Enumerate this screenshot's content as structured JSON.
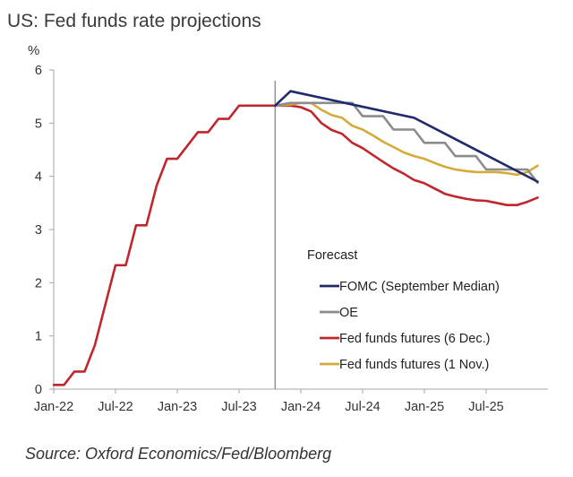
{
  "chart_data": {
    "type": "line",
    "title": "US: Fed funds rate projections",
    "ylabel": "%",
    "ylim": [
      0,
      6
    ],
    "yticks": [
      0,
      1,
      2,
      3,
      4,
      5,
      6
    ],
    "x_ticks": [
      "Jan-22",
      "Jul-22",
      "Jan-23",
      "Jul-23",
      "Jan-24",
      "Jul-24",
      "Jan-25",
      "Jul-25"
    ],
    "x_range_months": [
      0,
      48
    ],
    "forecast_start_month": 21.5,
    "annotation": "Forecast",
    "source": "Source: Oxford Economics/Fed/Bloomberg",
    "colors": {
      "fomc": "#1f2a6b",
      "oe": "#8c8c8c",
      "futures_dec": "#c0272d",
      "futures_nov": "#d4aa3a",
      "axis": "#a6a6a6",
      "forecast_line": "#7f7f7f"
    },
    "series": [
      {
        "name": "Fed funds futures (6 Dec.)",
        "key": "futures_dec",
        "points": [
          [
            0,
            0.08
          ],
          [
            1,
            0.08
          ],
          [
            2,
            0.33
          ],
          [
            3,
            0.33
          ],
          [
            4,
            0.83
          ],
          [
            5,
            1.58
          ],
          [
            6,
            2.33
          ],
          [
            7,
            2.33
          ],
          [
            8,
            3.08
          ],
          [
            9,
            3.08
          ],
          [
            10,
            3.83
          ],
          [
            11,
            4.33
          ],
          [
            12,
            4.33
          ],
          [
            13,
            4.58
          ],
          [
            14,
            4.83
          ],
          [
            15,
            4.83
          ],
          [
            16,
            5.08
          ],
          [
            17,
            5.08
          ],
          [
            18,
            5.33
          ],
          [
            19,
            5.33
          ],
          [
            20,
            5.33
          ],
          [
            21,
            5.33
          ],
          [
            22,
            5.33
          ],
          [
            23,
            5.33
          ],
          [
            24,
            5.3
          ],
          [
            25,
            5.22
          ],
          [
            26,
            5.0
          ],
          [
            27,
            4.87
          ],
          [
            28,
            4.8
          ],
          [
            29,
            4.63
          ],
          [
            30,
            4.53
          ],
          [
            31,
            4.4
          ],
          [
            32,
            4.27
          ],
          [
            33,
            4.15
          ],
          [
            34,
            4.05
          ],
          [
            35,
            3.93
          ],
          [
            36,
            3.87
          ],
          [
            37,
            3.77
          ],
          [
            38,
            3.67
          ],
          [
            39,
            3.62
          ],
          [
            40,
            3.58
          ],
          [
            41,
            3.55
          ],
          [
            42,
            3.54
          ],
          [
            43,
            3.5
          ],
          [
            44,
            3.46
          ],
          [
            45,
            3.46
          ],
          [
            46,
            3.52
          ],
          [
            47,
            3.6
          ]
        ]
      },
      {
        "name": "Fed funds futures (1 Nov.)",
        "key": "futures_nov",
        "points": [
          [
            21.5,
            5.33
          ],
          [
            23,
            5.35
          ],
          [
            24,
            5.38
          ],
          [
            25,
            5.38
          ],
          [
            26,
            5.25
          ],
          [
            27,
            5.15
          ],
          [
            28,
            5.1
          ],
          [
            29,
            4.95
          ],
          [
            30,
            4.88
          ],
          [
            31,
            4.77
          ],
          [
            32,
            4.65
          ],
          [
            33,
            4.55
          ],
          [
            34,
            4.45
          ],
          [
            35,
            4.38
          ],
          [
            36,
            4.33
          ],
          [
            37,
            4.25
          ],
          [
            38,
            4.18
          ],
          [
            39,
            4.13
          ],
          [
            40,
            4.1
          ],
          [
            41,
            4.08
          ],
          [
            42,
            4.08
          ],
          [
            43,
            4.08
          ],
          [
            44,
            4.06
          ],
          [
            45,
            4.03
          ],
          [
            46,
            4.08
          ],
          [
            47,
            4.2
          ]
        ]
      },
      {
        "name": "OE",
        "key": "oe",
        "points": [
          [
            21.5,
            5.33
          ],
          [
            23,
            5.38
          ],
          [
            24,
            5.38
          ],
          [
            25,
            5.38
          ],
          [
            26,
            5.38
          ],
          [
            27,
            5.38
          ],
          [
            28,
            5.38
          ],
          [
            29,
            5.38
          ],
          [
            30,
            5.13
          ],
          [
            31,
            5.13
          ],
          [
            32,
            5.13
          ],
          [
            33,
            4.88
          ],
          [
            34,
            4.88
          ],
          [
            35,
            4.88
          ],
          [
            36,
            4.63
          ],
          [
            37,
            4.63
          ],
          [
            38,
            4.63
          ],
          [
            39,
            4.38
          ],
          [
            40,
            4.38
          ],
          [
            41,
            4.38
          ],
          [
            42,
            4.13
          ],
          [
            43,
            4.13
          ],
          [
            44,
            4.13
          ],
          [
            45,
            4.13
          ],
          [
            46,
            4.13
          ],
          [
            47,
            3.88
          ]
        ]
      },
      {
        "name": "FOMC (September Median)",
        "key": "fomc",
        "points": [
          [
            21.5,
            5.33
          ],
          [
            23,
            5.6
          ],
          [
            35,
            5.1
          ],
          [
            47,
            3.9
          ]
        ]
      }
    ],
    "legend": [
      {
        "label": "FOMC (September Median)",
        "key": "fomc"
      },
      {
        "label": "OE",
        "key": "oe"
      },
      {
        "label": "Fed funds futures (6 Dec.)",
        "key": "futures_dec"
      },
      {
        "label": "Fed funds futures (1 Nov.)",
        "key": "futures_nov"
      }
    ]
  }
}
